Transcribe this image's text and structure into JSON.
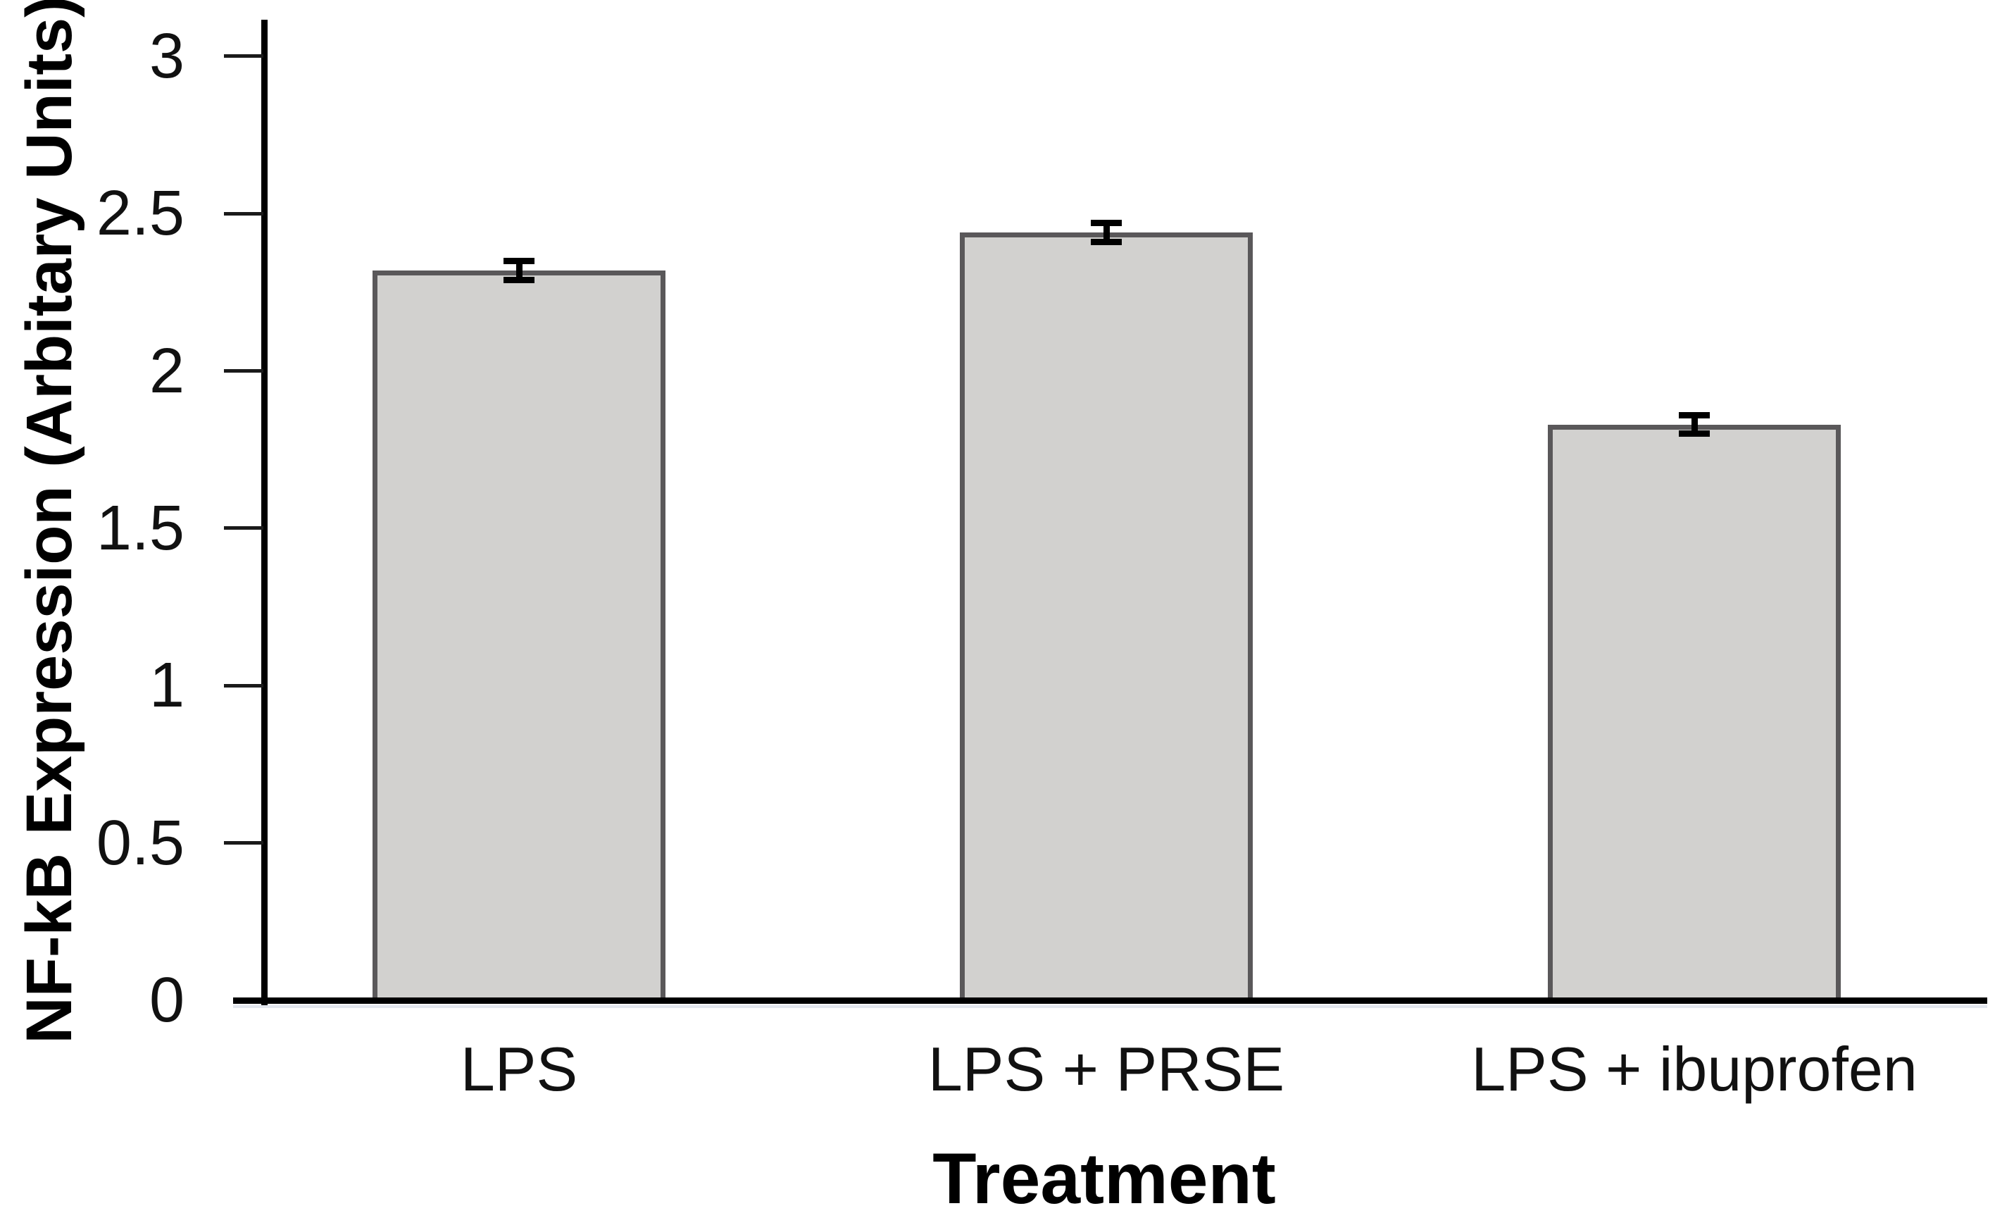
{
  "chart_data": {
    "type": "bar",
    "categories": [
      "LPS",
      "LPS + PRSE",
      "LPS + ibuprofen"
    ],
    "values": [
      2.32,
      2.44,
      1.83
    ],
    "errors": [
      0.03,
      0.03,
      0.03
    ],
    "title": "",
    "xlabel": "Treatment",
    "ylabel": "NF-kB Expression (Arbitary Units)",
    "ylim": [
      0,
      3.1
    ],
    "yticks": [
      0,
      0.5,
      1,
      1.5,
      2,
      2.5,
      3
    ],
    "ytick_labels": [
      "0",
      "0.5",
      "1",
      "1.5",
      "2",
      "2.5",
      "3"
    ],
    "grid": false,
    "legend": false,
    "colors": {
      "bar_fill": "#d2d1cf",
      "bar_border": "#5a585a",
      "error_bar": "#000000",
      "axis": "#000000",
      "background": "#ffffff"
    }
  }
}
